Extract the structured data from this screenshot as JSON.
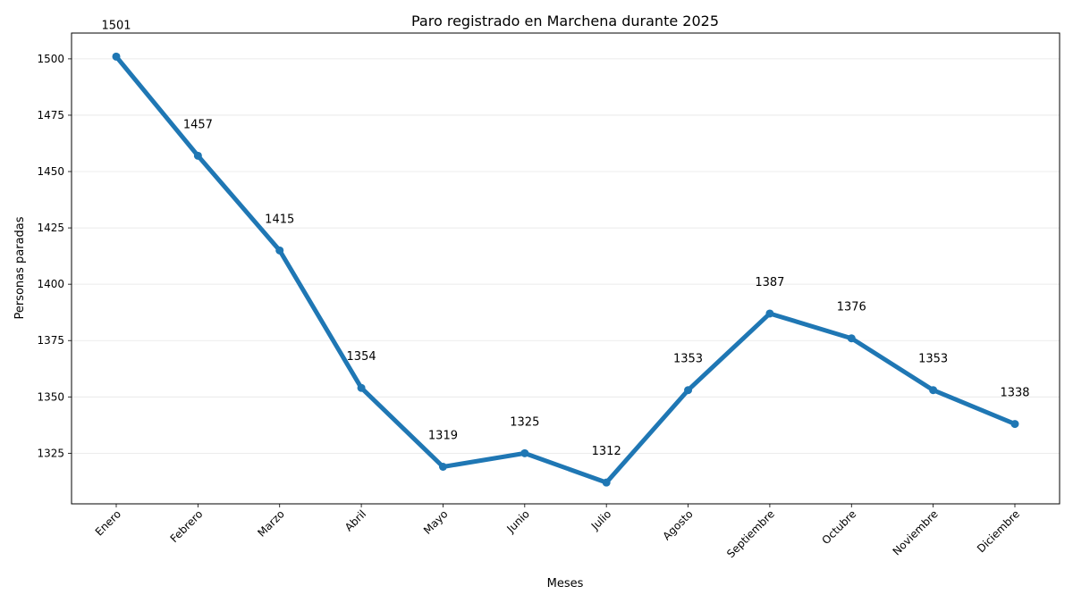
{
  "chart_data": {
    "type": "line",
    "title": "Paro registrado en Marchena durante 2025",
    "xlabel": "Meses",
    "ylabel": "Personas paradas",
    "categories": [
      "Enero",
      "Febrero",
      "Marzo",
      "Abril",
      "Mayo",
      "Junio",
      "Julio",
      "Agosto",
      "Septiembre",
      "Octubre",
      "Noviembre",
      "Diciembre"
    ],
    "series": [
      {
        "name": "Personas paradas",
        "values": [
          1501,
          1457,
          1415,
          1354,
          1319,
          1325,
          1312,
          1353,
          1387,
          1376,
          1353,
          1338
        ]
      }
    ],
    "yticks": [
      1325,
      1350,
      1375,
      1400,
      1425,
      1450,
      1475,
      1500
    ],
    "ylim": [
      1302.55,
      1511.45
    ],
    "grid": "horizontal",
    "line_color": "#1f77b4"
  }
}
